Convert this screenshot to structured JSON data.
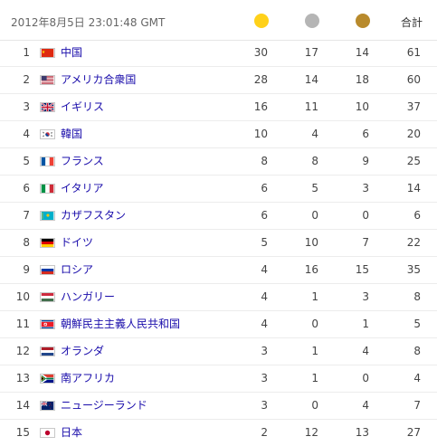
{
  "header": {
    "timestamp": "2012年8月5日 23:01:48 GMT",
    "total_label": "合計",
    "medal_colors": {
      "gold": "#ffd11a",
      "silver": "#b5b5b5",
      "bronze": "#b88a2c"
    }
  },
  "rows": [
    {
      "rank": "1",
      "flag": "china-flag-icon",
      "country": "中国",
      "gold": "30",
      "silver": "17",
      "bronze": "14",
      "total": "61"
    },
    {
      "rank": "2",
      "flag": "usa-flag-icon",
      "country": "アメリカ合衆国",
      "gold": "28",
      "silver": "14",
      "bronze": "18",
      "total": "60"
    },
    {
      "rank": "3",
      "flag": "uk-flag-icon",
      "country": "イギリス",
      "gold": "16",
      "silver": "11",
      "bronze": "10",
      "total": "37"
    },
    {
      "rank": "4",
      "flag": "south-korea-flag-icon",
      "country": "韓国",
      "gold": "10",
      "silver": "4",
      "bronze": "6",
      "total": "20"
    },
    {
      "rank": "5",
      "flag": "france-flag-icon",
      "country": "フランス",
      "gold": "8",
      "silver": "8",
      "bronze": "9",
      "total": "25"
    },
    {
      "rank": "6",
      "flag": "italy-flag-icon",
      "country": "イタリア",
      "gold": "6",
      "silver": "5",
      "bronze": "3",
      "total": "14"
    },
    {
      "rank": "7",
      "flag": "kazakhstan-flag-icon",
      "country": "カザフスタン",
      "gold": "6",
      "silver": "0",
      "bronze": "0",
      "total": "6"
    },
    {
      "rank": "8",
      "flag": "germany-flag-icon",
      "country": "ドイツ",
      "gold": "5",
      "silver": "10",
      "bronze": "7",
      "total": "22"
    },
    {
      "rank": "9",
      "flag": "russia-flag-icon",
      "country": "ロシア",
      "gold": "4",
      "silver": "16",
      "bronze": "15",
      "total": "35"
    },
    {
      "rank": "10",
      "flag": "hungary-flag-icon",
      "country": "ハンガリー",
      "gold": "4",
      "silver": "1",
      "bronze": "3",
      "total": "8"
    },
    {
      "rank": "11",
      "flag": "north-korea-flag-icon",
      "country": "朝鮮民主主義人民共和国",
      "gold": "4",
      "silver": "0",
      "bronze": "1",
      "total": "5"
    },
    {
      "rank": "12",
      "flag": "netherlands-flag-icon",
      "country": "オランダ",
      "gold": "3",
      "silver": "1",
      "bronze": "4",
      "total": "8"
    },
    {
      "rank": "13",
      "flag": "south-africa-flag-icon",
      "country": "南アフリカ",
      "gold": "3",
      "silver": "1",
      "bronze": "0",
      "total": "4"
    },
    {
      "rank": "14",
      "flag": "new-zealand-flag-icon",
      "country": "ニュージーランド",
      "gold": "3",
      "silver": "0",
      "bronze": "4",
      "total": "7"
    },
    {
      "rank": "15",
      "flag": "japan-flag-icon",
      "country": "日本",
      "gold": "2",
      "silver": "12",
      "bronze": "13",
      "total": "27"
    }
  ]
}
